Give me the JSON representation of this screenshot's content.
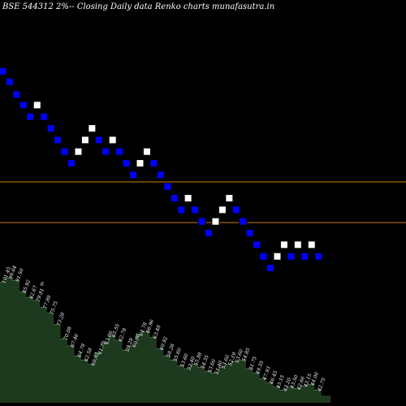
{
  "chart_data": {
    "type": "renko",
    "title": "BSE 544312  2%-- Closing Daily data Renko  charts munafasutra.in",
    "colors": {
      "background": "#000000",
      "up_brick": "#ffffff",
      "down_brick": "#0000ff",
      "brick_border": "#000000",
      "reference_line": "#cc7a00",
      "volume_fill": "#1e3a1e",
      "volume_edge": "#6b8f6b",
      "label": "#ffffff"
    },
    "price_range": [
      52,
      82
    ],
    "reference_lines": [
      70.0,
      66.5
    ],
    "bricks": [
      {
        "d": "down",
        "v": 79.5
      },
      {
        "d": "down",
        "v": 78.6
      },
      {
        "d": "down",
        "v": 77.5
      },
      {
        "d": "down",
        "v": 76.6
      },
      {
        "d": "down",
        "v": 75.6
      },
      {
        "d": "up",
        "v": 76.6
      },
      {
        "d": "down",
        "v": 75.6
      },
      {
        "d": "down",
        "v": 74.6
      },
      {
        "d": "down",
        "v": 73.6
      },
      {
        "d": "down",
        "v": 72.6
      },
      {
        "d": "down",
        "v": 71.6
      },
      {
        "d": "up",
        "v": 72.6
      },
      {
        "d": "up",
        "v": 73.6
      },
      {
        "d": "up",
        "v": 74.6
      },
      {
        "d": "down",
        "v": 73.6
      },
      {
        "d": "down",
        "v": 72.6
      },
      {
        "d": "up",
        "v": 73.6
      },
      {
        "d": "down",
        "v": 72.6
      },
      {
        "d": "down",
        "v": 71.6
      },
      {
        "d": "down",
        "v": 70.6
      },
      {
        "d": "up",
        "v": 71.6
      },
      {
        "d": "up",
        "v": 72.6
      },
      {
        "d": "down",
        "v": 71.6
      },
      {
        "d": "down",
        "v": 70.6
      },
      {
        "d": "down",
        "v": 69.6
      },
      {
        "d": "down",
        "v": 68.6
      },
      {
        "d": "down",
        "v": 67.6
      },
      {
        "d": "up",
        "v": 68.6
      },
      {
        "d": "down",
        "v": 67.6
      },
      {
        "d": "down",
        "v": 66.6
      },
      {
        "d": "down",
        "v": 65.6
      },
      {
        "d": "up",
        "v": 66.6
      },
      {
        "d": "up",
        "v": 67.6
      },
      {
        "d": "up",
        "v": 68.6
      },
      {
        "d": "down",
        "v": 67.6
      },
      {
        "d": "down",
        "v": 66.6
      },
      {
        "d": "down",
        "v": 65.6
      },
      {
        "d": "down",
        "v": 64.6
      },
      {
        "d": "down",
        "v": 63.6
      },
      {
        "d": "down",
        "v": 62.6
      },
      {
        "d": "up",
        "v": 63.6
      },
      {
        "d": "up",
        "v": 64.6
      },
      {
        "d": "down",
        "v": 63.6
      },
      {
        "d": "up",
        "v": 64.6
      },
      {
        "d": "down",
        "v": 63.6
      },
      {
        "d": "up",
        "v": 64.6
      },
      {
        "d": "down",
        "v": 63.6
      }
    ],
    "volume_labels": [
      "101.45",
      "99.64",
      "91.50",
      "85.92",
      "82.67",
      "79.81",
      "77.89",
      "75.75",
      "73.28",
      "70.08",
      "67.46",
      "64.78",
      "62.58",
      "60.92",
      "61.73",
      "63.00",
      "65.55",
      "62.78",
      "59.28",
      "60.90",
      "64.78",
      "66.96",
      "63.48",
      "60.92",
      "58.26",
      "55.60",
      "53.60",
      "52.40",
      "55.88",
      "54.35",
      "53.60",
      "51.40",
      "53.60",
      "52.19",
      "53.60",
      "54.85",
      "51.75",
      "49.35",
      "47.93",
      "46.45",
      "45.15",
      "43.20",
      "43.50",
      "42.66",
      "43.15",
      "44.00",
      "42.75"
    ],
    "volume_heights": [
      0.85,
      0.88,
      0.86,
      0.78,
      0.74,
      0.72,
      0.67,
      0.63,
      0.55,
      0.45,
      0.4,
      0.33,
      0.3,
      0.27,
      0.35,
      0.42,
      0.47,
      0.44,
      0.37,
      0.4,
      0.48,
      0.5,
      0.46,
      0.38,
      0.33,
      0.3,
      0.26,
      0.24,
      0.27,
      0.25,
      0.22,
      0.21,
      0.25,
      0.27,
      0.29,
      0.3,
      0.24,
      0.21,
      0.17,
      0.14,
      0.11,
      0.09,
      0.11,
      0.1,
      0.12,
      0.13,
      0.09
    ],
    "extra_label": "6"
  }
}
